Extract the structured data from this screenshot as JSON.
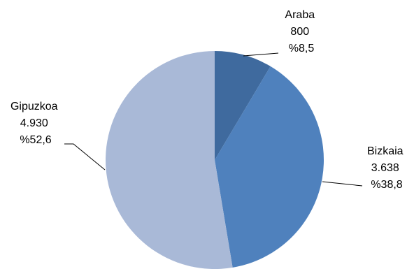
{
  "chart_data": {
    "type": "pie",
    "title": "",
    "slices": [
      {
        "name": "Araba",
        "value": 800,
        "value_label": "800",
        "percent_label": "%8,5",
        "color": "#3F6A9E"
      },
      {
        "name": "Bizkaia",
        "value": 3638,
        "value_label": "3.638",
        "percent_label": "%38,8",
        "color": "#4F81BD"
      },
      {
        "name": "Gipuzkoa",
        "value": 4930,
        "value_label": "4.930",
        "percent_label": "%52,6",
        "color": "#A9B9D7"
      }
    ],
    "start_angle_deg": 0,
    "direction": "clockwise",
    "legend": "none"
  }
}
